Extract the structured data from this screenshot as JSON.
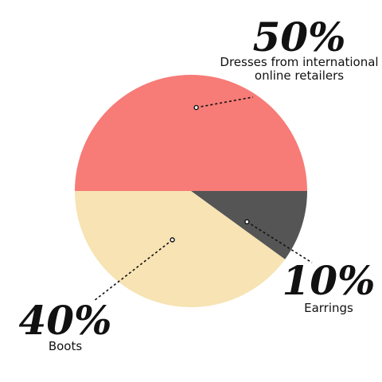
{
  "chart_data": {
    "type": "pie",
    "slices": [
      {
        "label_lines": [
          "Dresses from international",
          "online retailers"
        ],
        "value": 50,
        "value_text": "50%",
        "color": "#f77b77"
      },
      {
        "label_lines": [
          "Earrings"
        ],
        "value": 10,
        "value_text": "10%",
        "color": "#555555"
      },
      {
        "label_lines": [
          "Boots"
        ],
        "value": 40,
        "value_text": "40%",
        "color": "#f7e3b3"
      }
    ]
  }
}
